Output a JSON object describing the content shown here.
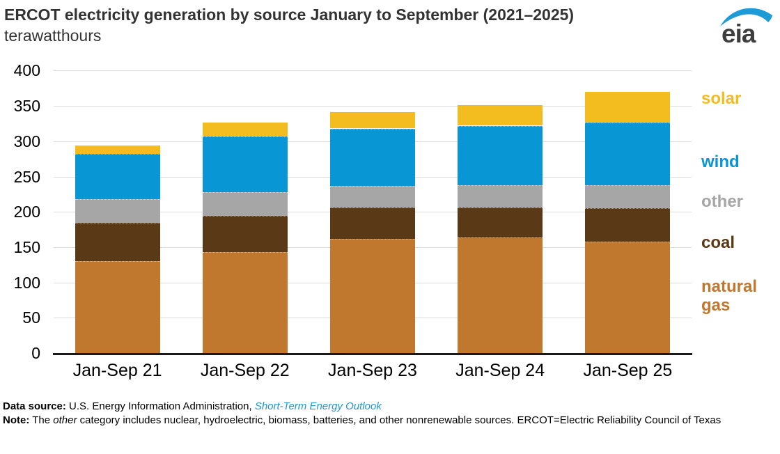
{
  "header": {
    "title": "ERCOT electricity generation by source January to September (2021–2025)",
    "subtitle": "terawatthours",
    "logo": "eia"
  },
  "chart_data": {
    "type": "bar",
    "stacked": true,
    "title": "ERCOT electricity generation by source January to September (2021–2025)",
    "ylabel": "terawatthours",
    "categories": [
      "Jan-Sep 21",
      "Jan-Sep 22",
      "Jan-Sep 23",
      "Jan-Sep 24",
      "Jan-Sep 25"
    ],
    "series": [
      {
        "name": "natural gas",
        "color": "#c0772e",
        "values": [
          130,
          143,
          162,
          164,
          158
        ]
      },
      {
        "name": "coal",
        "color": "#5a3917",
        "values": [
          54,
          51,
          44,
          42,
          47
        ]
      },
      {
        "name": "other",
        "color": "#a6a6a6",
        "values": [
          34,
          34,
          31,
          32,
          33
        ]
      },
      {
        "name": "wind",
        "color": "#0996d5",
        "values": [
          64,
          79,
          81,
          84,
          88
        ]
      },
      {
        "name": "solar",
        "color": "#f3bd1f",
        "values": [
          12,
          19,
          23,
          29,
          44
        ]
      }
    ],
    "totals": [
      294,
      326,
      341,
      351,
      370
    ],
    "ylim": [
      0,
      400
    ],
    "ytick_interval": 50,
    "yticks": [
      0,
      50,
      100,
      150,
      200,
      250,
      300,
      350,
      400
    ],
    "grid": true,
    "legend_position": "right",
    "legend_order_top_to_bottom": [
      "solar",
      "wind",
      "other",
      "coal",
      "natural gas"
    ]
  },
  "legend": {
    "items": [
      {
        "label": "solar",
        "color": "#f3bd1f"
      },
      {
        "label": "wind",
        "color": "#0996d5"
      },
      {
        "label": "other",
        "color": "#a6a6a6"
      },
      {
        "label": "coal",
        "color": "#5a3917"
      },
      {
        "label": "natural gas",
        "color": "#c0772e"
      }
    ]
  },
  "footer": {
    "data_source_label": "Data source:",
    "data_source_text": " U.S. Energy Information Administration, ",
    "data_source_link": "Short-Term Energy Outlook",
    "note_label": "Note:",
    "note_text_1": " The ",
    "note_italic": "other",
    "note_text_2": " category includes nuclear, hydroelectric, biomass, batteries, and other nonrenewable sources. ERCOT=Electric Reliability Council of Texas"
  }
}
